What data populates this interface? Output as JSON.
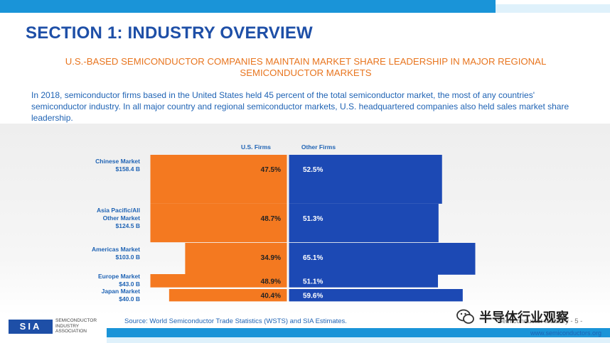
{
  "header": {
    "title": "SECTION 1: INDUSTRY OVERVIEW",
    "subtitle": "U.S.-BASED SEMICONDUCTOR COMPANIES MAINTAIN MARKET SHARE LEADERSHIP IN MAJOR REGIONAL SEMICONDUCTOR MARKETS",
    "intro": "In 2018, semiconductor firms based in the United States held 45 percent of the total semiconductor market, the most of any countries' semiconductor industry.  In all major country and regional semiconductor markets, U.S. headquartered companies also held sales market share leadership."
  },
  "chart_data": {
    "type": "bar",
    "series": [
      {
        "name": "U.S. Firms",
        "values": [
          47.5,
          48.7,
          34.9,
          48.9,
          40.4
        ],
        "color": "#f47920"
      },
      {
        "name": "Other Firms",
        "values": [
          52.5,
          51.3,
          65.1,
          51.1,
          59.6
        ],
        "color": "#1c49b4"
      }
    ],
    "categories": [
      {
        "lines": [
          "Chinese Market",
          "$158.4 B"
        ],
        "size": 158.4
      },
      {
        "lines": [
          "Asia Pacific/All",
          "Other Market",
          "$124.5 B"
        ],
        "size": 124.5
      },
      {
        "lines": [
          "Americas Market",
          "$103.0 B"
        ],
        "size": 103.0
      },
      {
        "lines": [
          "Europe Market",
          "$43.0 B"
        ],
        "size": 43.0
      },
      {
        "lines": [
          "Japan Market",
          "$40.0 B"
        ],
        "size": 40.0
      }
    ],
    "value_suffix": "%",
    "label_color": "#1f63b4"
  },
  "footer": {
    "logo_text": "SIA",
    "logo_words": [
      "SEMICONDUCTOR",
      "INDUSTRY",
      "ASSOCIATION"
    ],
    "source": "Source: World Semiconductor Trade Statistics (WSTS) and SIA Estimates.",
    "page_note": "Semiconductor Industry - 5 -",
    "website": "www.semiconductors.org",
    "watermark": "半导体行业观察"
  }
}
